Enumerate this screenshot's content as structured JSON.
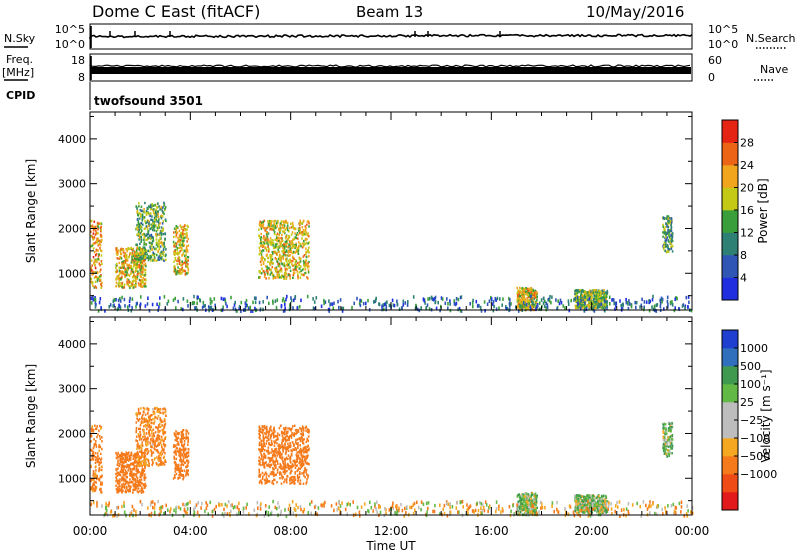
{
  "header": {
    "radar": "Dome C East (fitACF)",
    "beam": "Beam 13",
    "date": "10/May/2016"
  },
  "noise_panel": {
    "left_label": "N.Sky",
    "right_label": "N.Search",
    "left_ticks": [
      "10^5",
      "10^0"
    ],
    "right_ticks": [
      "10^5",
      "10^0"
    ],
    "line_style_right": "dotted"
  },
  "freq_panel": {
    "left_label_line1": "Freq.",
    "left_label_line2": "[MHz]",
    "right_label": "Nave",
    "left_ticks": [
      "18",
      "8"
    ],
    "right_ticks": [
      "60",
      "0"
    ],
    "line_style_right": "dotted"
  },
  "cpid_panel": {
    "label": "CPID",
    "program": "twofsound 3501"
  },
  "colors": {
    "power_scale": [
      "#1f2fe0",
      "#2f56b5",
      "#2e7f74",
      "#3a9f3a",
      "#c3c915",
      "#f0a51c",
      "#ec6415",
      "#e52414"
    ],
    "velocity_scale": [
      "#e31a1c",
      "#ef4b17",
      "#f57a1b",
      "#f6a722",
      "#bdbdbd",
      "#bdbdbd",
      "#62b946",
      "#3f9a4f",
      "#2f6fbb",
      "#1f3fd0"
    ]
  },
  "chart_data": [
    {
      "type": "heatmap",
      "parameter": "Power",
      "ylabel": "Slant Range [km]",
      "yticks": [
        1000,
        2000,
        3000,
        4000
      ],
      "ylim": [
        180,
        4600
      ],
      "xlim": [
        0,
        24
      ],
      "colorbar": {
        "label": "Power [dB]",
        "ticks": [
          "4",
          "8",
          "12",
          "16",
          "20",
          "24",
          "28"
        ],
        "range": [
          0,
          32
        ]
      },
      "echo_regions": [
        {
          "t": [
            0.0,
            0.45
          ],
          "r": [
            700,
            2200
          ],
          "mean": 22
        },
        {
          "t": [
            1.0,
            2.2
          ],
          "r": [
            700,
            1600
          ],
          "mean": 20
        },
        {
          "t": [
            1.8,
            3.0
          ],
          "r": [
            1300,
            2600
          ],
          "mean": 14
        },
        {
          "t": [
            3.3,
            3.9
          ],
          "r": [
            1000,
            2100
          ],
          "mean": 20
        },
        {
          "t": [
            6.7,
            8.7
          ],
          "r": [
            900,
            2200
          ],
          "mean": 19
        },
        {
          "t": [
            17.0,
            17.8
          ],
          "r": [
            200,
            700
          ],
          "mean": 20
        },
        {
          "t": [
            19.3,
            20.6
          ],
          "r": [
            250,
            650
          ],
          "mean": 16
        },
        {
          "t": [
            22.8,
            23.2
          ],
          "r": [
            1500,
            2300
          ],
          "mean": 12
        },
        {
          "t": [
            0.0,
            24.0
          ],
          "r": [
            190,
            520
          ],
          "mean": 8
        }
      ]
    },
    {
      "type": "heatmap",
      "parameter": "Velocity",
      "ylabel": "Slant Range [km]",
      "yticks": [
        1000,
        2000,
        3000,
        4000
      ],
      "ylim": [
        180,
        4600
      ],
      "xlim": [
        0,
        24
      ],
      "xticks": [
        "00:00",
        "04:00",
        "08:00",
        "12:00",
        "16:00",
        "20:00",
        "00:00"
      ],
      "xlabel": "Time UT",
      "colorbar": {
        "label": "Velocity [m s⁻¹]",
        "ticks": [
          "1000",
          "500",
          "100",
          "25",
          "−25",
          "−100",
          "−500",
          "−1000"
        ]
      },
      "echo_regions": [
        {
          "t": [
            0.0,
            0.45
          ],
          "r": [
            700,
            2200
          ],
          "mean": -200
        },
        {
          "t": [
            1.0,
            2.2
          ],
          "r": [
            700,
            1600
          ],
          "mean": -250
        },
        {
          "t": [
            1.8,
            3.0
          ],
          "r": [
            1300,
            2600
          ],
          "mean": -150
        },
        {
          "t": [
            3.3,
            3.9
          ],
          "r": [
            1000,
            2100
          ],
          "mean": -250
        },
        {
          "t": [
            6.7,
            8.7
          ],
          "r": [
            900,
            2200
          ],
          "mean": -250
        },
        {
          "t": [
            17.0,
            17.8
          ],
          "r": [
            200,
            700
          ],
          "mean": 60
        },
        {
          "t": [
            19.3,
            20.6
          ],
          "r": [
            250,
            650
          ],
          "mean": 60
        },
        {
          "t": [
            22.8,
            23.2
          ],
          "r": [
            1500,
            2300
          ],
          "mean": 60
        },
        {
          "t": [
            0.0,
            24.0
          ],
          "r": [
            190,
            520
          ],
          "mean": -40
        }
      ]
    }
  ]
}
